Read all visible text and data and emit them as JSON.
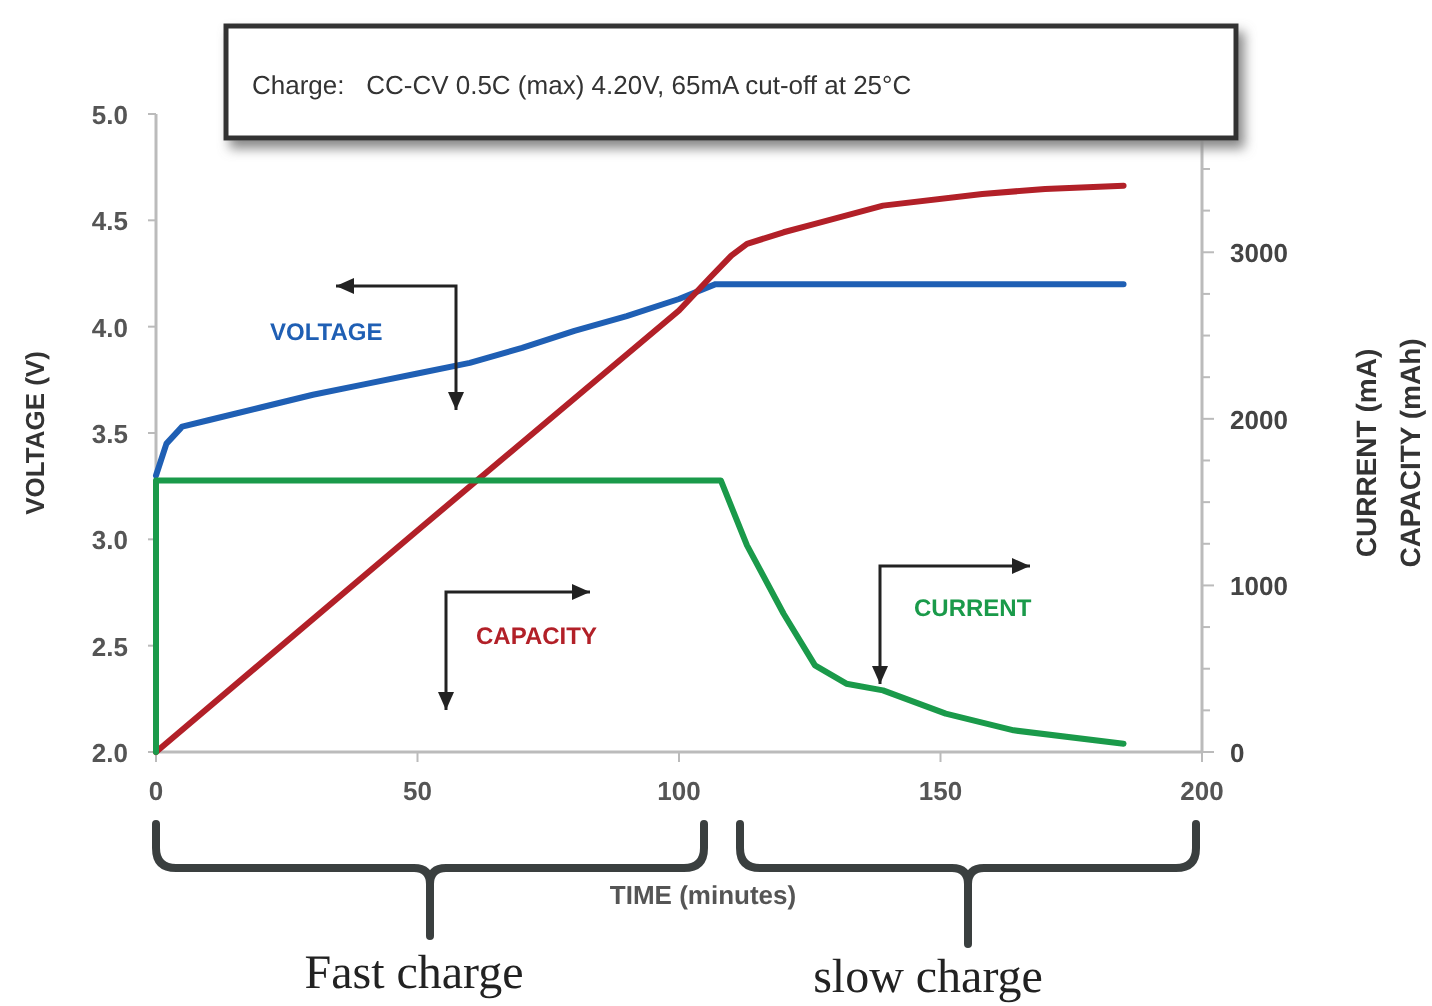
{
  "chart_data": {
    "type": "line",
    "title": "Charge:   CC-CV 0.5C (max) 4.20V, 65mA cut-off at 25°C",
    "xlabel": "TIME (minutes)",
    "ylabel": "VOLTAGE (V)",
    "y2label": "CURRENT (mA)\nCAPACITY (mAh)",
    "xlim": [
      0,
      200
    ],
    "xticks": [
      0,
      50,
      100,
      150,
      200
    ],
    "ylim": [
      2.0,
      5.0
    ],
    "yticks": [
      {
        "value": 2.0,
        "label": "2.0"
      },
      {
        "value": 2.5,
        "label": "2.5"
      },
      {
        "value": 3.0,
        "label": "3.0"
      },
      {
        "value": 3.5,
        "label": "3.5"
      },
      {
        "value": 4.0,
        "label": "4.0"
      },
      {
        "value": 4.5,
        "label": "4.5"
      },
      {
        "value": 5.0,
        "label": "5.0"
      }
    ],
    "y2lim": [
      0,
      3830
    ],
    "y2ticks": [
      0,
      {
        "value": 250,
        "label": null
      },
      {
        "value": 500,
        "label": null
      },
      {
        "value": 750,
        "label": null
      },
      1000,
      {
        "value": 1250,
        "label": null
      },
      {
        "value": 1500,
        "label": null
      },
      {
        "value": 1750,
        "label": null
      },
      2000,
      {
        "value": 2250,
        "label": null
      },
      {
        "value": 2500,
        "label": null
      },
      {
        "value": 2750,
        "label": null
      },
      3000,
      {
        "value": 3250,
        "label": null
      },
      {
        "value": 3500,
        "label": null
      },
      {
        "value": 3750,
        "label": null
      }
    ],
    "grid": false,
    "line_style": "solid",
    "annotations": [
      "Fast charge",
      "slow charge"
    ],
    "series": [
      {
        "name": "VOLTAGE",
        "color": "#1f5fb4",
        "x": [
          0,
          2,
          5,
          10,
          20,
          30,
          40,
          50,
          60,
          70,
          80,
          90,
          100,
          107,
          120,
          150,
          185
        ],
        "values": [
          3.3,
          3.45,
          3.53,
          3.56,
          3.62,
          3.68,
          3.73,
          3.78,
          3.83,
          3.9,
          3.98,
          4.05,
          4.13,
          4.2,
          4.2,
          4.2,
          4.2
        ]
      },
      {
        "name": "CAPACITY",
        "color": "#b22028",
        "axis": "y2",
        "x": [
          0,
          50,
          100,
          106,
          110,
          113,
          120,
          126,
          139,
          158,
          170,
          185
        ],
        "values": [
          0,
          1330,
          2650,
          2850,
          2980,
          3050,
          3120,
          3170,
          3280,
          3350,
          3380,
          3400
        ]
      },
      {
        "name": "CURRENT",
        "color": "#1a9a4a",
        "axis": "y2",
        "x": [
          0,
          0,
          50,
          108,
          113,
          120,
          126,
          132,
          139,
          151,
          164,
          185
        ],
        "values": [
          0,
          1630,
          1630,
          1630,
          1240,
          830,
          520,
          410,
          370,
          230,
          130,
          50
        ]
      }
    ]
  }
}
